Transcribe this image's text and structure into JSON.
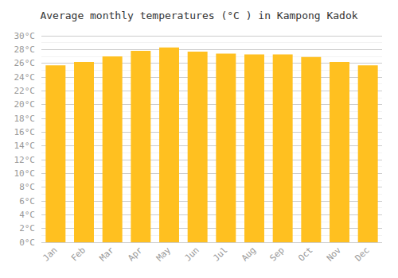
{
  "chart_data": {
    "type": "bar",
    "title": "Average monthly temperatures (°C ) in Kampong Kadok",
    "categories": [
      "Jan",
      "Feb",
      "Mar",
      "Apr",
      "May",
      "Jun",
      "Jul",
      "Aug",
      "Sep",
      "Oct",
      "Nov",
      "Dec"
    ],
    "values": [
      25.7,
      26.2,
      27.0,
      27.8,
      28.3,
      27.7,
      27.4,
      27.3,
      27.3,
      26.9,
      26.2,
      25.7
    ],
    "color": "#FFC020",
    "ylim": [
      0,
      30
    ],
    "yticks": [
      {
        "value": 0,
        "label": "0°C"
      },
      {
        "value": 2,
        "label": "2°C"
      },
      {
        "value": 4,
        "label": "4°C"
      },
      {
        "value": 6,
        "label": "6°C"
      },
      {
        "value": 8,
        "label": "8°C"
      },
      {
        "value": 10,
        "label": "10°C"
      },
      {
        "value": 12,
        "label": "12°C"
      },
      {
        "value": 14,
        "label": "14°C"
      },
      {
        "value": 16,
        "label": "16°C"
      },
      {
        "value": 18,
        "label": "18°C"
      },
      {
        "value": 20,
        "label": "20°C"
      },
      {
        "value": 22,
        "label": "22°C"
      },
      {
        "value": 24,
        "label": "24°C"
      },
      {
        "value": 26,
        "label": "26°C"
      },
      {
        "value": 28,
        "label": "28°C"
      },
      {
        "value": 30,
        "label": "30°C"
      }
    ],
    "grid": true
  }
}
